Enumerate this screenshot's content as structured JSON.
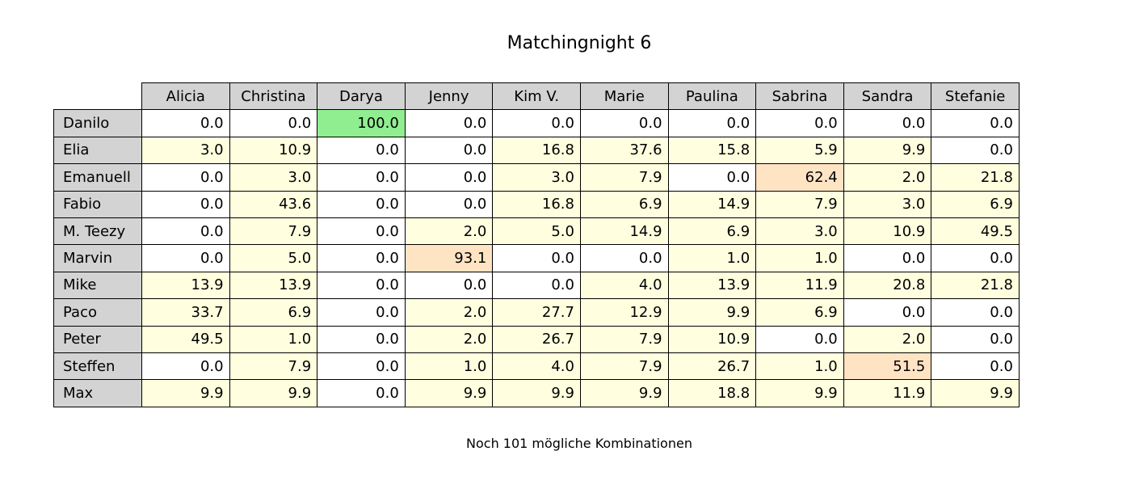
{
  "chart_data": {
    "type": "table",
    "title": "Matchingnight 6",
    "columns": [
      "Alicia",
      "Christina",
      "Darya",
      "Jenny",
      "Kim V.",
      "Marie",
      "Paulina",
      "Sabrina",
      "Sandra",
      "Stefanie"
    ],
    "rows": [
      "Danilo",
      "Elia",
      "Emanuell",
      "Fabio",
      "M. Teezy",
      "Marvin",
      "Mike",
      "Paco",
      "Peter",
      "Steffen",
      "Max"
    ],
    "values": [
      [
        "0.0",
        "0.0",
        "100.0",
        "0.0",
        "0.0",
        "0.0",
        "0.0",
        "0.0",
        "0.0",
        "0.0"
      ],
      [
        "3.0",
        "10.9",
        "0.0",
        "0.0",
        "16.8",
        "37.6",
        "15.8",
        "5.9",
        "9.9",
        "0.0"
      ],
      [
        "0.0",
        "3.0",
        "0.0",
        "0.0",
        "3.0",
        "7.9",
        "0.0",
        "62.4",
        "2.0",
        "21.8"
      ],
      [
        "0.0",
        "43.6",
        "0.0",
        "0.0",
        "16.8",
        "6.9",
        "14.9",
        "7.9",
        "3.0",
        "6.9"
      ],
      [
        "0.0",
        "7.9",
        "0.0",
        "2.0",
        "5.0",
        "14.9",
        "6.9",
        "3.0",
        "10.9",
        "49.5"
      ],
      [
        "0.0",
        "5.0",
        "0.0",
        "93.1",
        "0.0",
        "0.0",
        "1.0",
        "1.0",
        "0.0",
        "0.0"
      ],
      [
        "13.9",
        "13.9",
        "0.0",
        "0.0",
        "0.0",
        "4.0",
        "13.9",
        "11.9",
        "20.8",
        "21.8"
      ],
      [
        "33.7",
        "6.9",
        "0.0",
        "2.0",
        "27.7",
        "12.9",
        "9.9",
        "6.9",
        "0.0",
        "0.0"
      ],
      [
        "49.5",
        "1.0",
        "0.0",
        "2.0",
        "26.7",
        "7.9",
        "10.9",
        "0.0",
        "2.0",
        "0.0"
      ],
      [
        "0.0",
        "7.9",
        "0.0",
        "1.0",
        "4.0",
        "7.9",
        "26.7",
        "1.0",
        "51.5",
        "0.0"
      ],
      [
        "9.9",
        "9.9",
        "0.0",
        "9.9",
        "9.9",
        "9.9",
        "18.8",
        "9.9",
        "11.9",
        "9.9"
      ]
    ],
    "footnote": "Noch 101 mögliche Kombinationen",
    "colors": {
      "header": "#d3d3d3",
      "zero": "#ffffff",
      "low": "#ffffe0",
      "high": "#ffe4c4",
      "certain": "#90ee90"
    }
  }
}
